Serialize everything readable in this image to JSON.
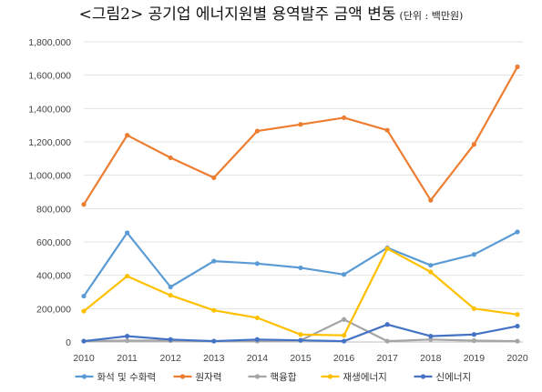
{
  "header": {
    "title": "<그림2> 공기업 에너지원별 용역발주 금액 변동",
    "unit": "(단위 : 백만원)"
  },
  "chart_data": {
    "type": "line",
    "title": "<그림2> 공기업 에너지원별 용역발주 금액 변동",
    "unit_note": "(단위 : 백만원)",
    "xlabel": "",
    "ylabel": "",
    "x": [
      "2010",
      "2011",
      "2012",
      "2013",
      "2014",
      "2015",
      "2016",
      "2017",
      "2018",
      "2019",
      "2020"
    ],
    "ylim": [
      0,
      1800000
    ],
    "yticks": [
      0,
      200000,
      400000,
      600000,
      800000,
      1000000,
      1200000,
      1400000,
      1600000,
      1800000
    ],
    "ytick_labels": [
      "0",
      "200,000",
      "400,000",
      "600,000",
      "800,000",
      "1,000,000",
      "1,200,000",
      "1,400,000",
      "1,600,000",
      "1,800,000"
    ],
    "grid": true,
    "legend_position": "bottom",
    "series": [
      {
        "name": "화석 및 수화력",
        "color": "#5b9bd5",
        "values": [
          275000,
          655000,
          330000,
          485000,
          470000,
          445000,
          405000,
          565000,
          460000,
          525000,
          660000
        ]
      },
      {
        "name": "원자력",
        "color": "#ed7d31",
        "values": [
          825000,
          1240000,
          1105000,
          985000,
          1265000,
          1305000,
          1345000,
          1270000,
          850000,
          1185000,
          1650000
        ]
      },
      {
        "name": "핵융합",
        "color": "#a5a5a5",
        "values": [
          5000,
          8000,
          8000,
          5000,
          5000,
          10000,
          135000,
          5000,
          15000,
          8000,
          5000
        ]
      },
      {
        "name": "재생에너지",
        "color": "#ffc000",
        "values": [
          185000,
          395000,
          280000,
          190000,
          145000,
          45000,
          40000,
          560000,
          420000,
          200000,
          165000
        ]
      },
      {
        "name": "신에너지",
        "color": "#4472c4",
        "values": [
          5000,
          35000,
          15000,
          5000,
          15000,
          10000,
          5000,
          105000,
          35000,
          45000,
          95000
        ]
      }
    ]
  }
}
